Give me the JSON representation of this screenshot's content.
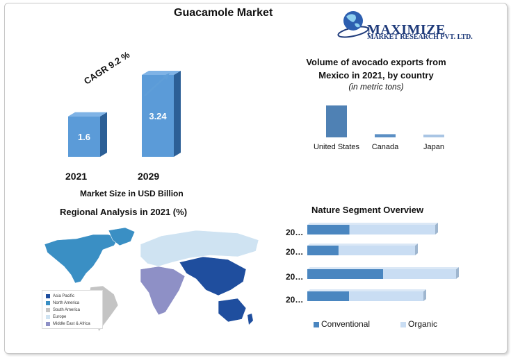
{
  "header": {
    "title": "Guacamole Market"
  },
  "logo": {
    "name": "MAXIMIZE",
    "sub": "MARKET RESEARCH PVT. LTD."
  },
  "market_size": {
    "cagr_label": "CAGR 9.2 %",
    "caption": "Market Size in USD Billion",
    "bars": [
      {
        "year": "2021",
        "value": 1.6,
        "label": "1.6"
      },
      {
        "year": "2029",
        "value": 3.24,
        "label": "3.24"
      }
    ]
  },
  "exports": {
    "title": "Volume of avocado exports from Mexico in 2021, by country",
    "subtitle": "(in metric tons)",
    "categories": [
      "United States",
      "Canada",
      "Japan"
    ],
    "values": [
      100,
      10,
      8
    ]
  },
  "regional": {
    "title": "Regional Analysis in 2021 (%)",
    "legend": [
      {
        "label": "Asia Pacific",
        "color": "#1f4e9e"
      },
      {
        "label": "North America",
        "color": "#3a8fc4"
      },
      {
        "label": "South America",
        "color": "#c4c4c4"
      },
      {
        "label": "Europe",
        "color": "#cfe3f2"
      },
      {
        "label": "Middle East & Africa",
        "color": "#8e90c6"
      }
    ]
  },
  "segment": {
    "title": "Nature Segment Overview",
    "rows": [
      {
        "label": "20…",
        "conventional": 0.33,
        "organic": 0.67
      },
      {
        "label": "20…",
        "conventional": 0.29,
        "organic": 0.71
      },
      {
        "label": "20…",
        "conventional": 0.51,
        "organic": 0.49
      },
      {
        "label": "20…",
        "conventional": 0.36,
        "organic": 0.64
      }
    ],
    "legend": [
      {
        "label": "Conventional",
        "color": "#4a86c0"
      },
      {
        "label": "Organic",
        "color": "#c9ddf3"
      }
    ]
  },
  "chart_data": [
    {
      "type": "bar",
      "title": "Guacamole Market",
      "categories": [
        "2021",
        "2029"
      ],
      "values": [
        1.6,
        3.24
      ],
      "xlabel": "Market Size in USD Billion",
      "annotation": "CAGR 9.2 %"
    },
    {
      "type": "bar",
      "title": "Volume of avocado exports from Mexico in 2021, by country",
      "subtitle": "(in metric tons)",
      "categories": [
        "United States",
        "Canada",
        "Japan"
      ],
      "values": [
        100,
        10,
        8
      ]
    },
    {
      "type": "bar",
      "title": "Nature Segment Overview",
      "orientation": "horizontal",
      "stacked": true,
      "categories": [
        "20…",
        "20…",
        "20…",
        "20…"
      ],
      "series": [
        {
          "name": "Conventional",
          "values": [
            0.33,
            0.29,
            0.51,
            0.36
          ]
        },
        {
          "name": "Organic",
          "values": [
            0.67,
            0.71,
            0.49,
            0.64
          ]
        }
      ]
    }
  ]
}
